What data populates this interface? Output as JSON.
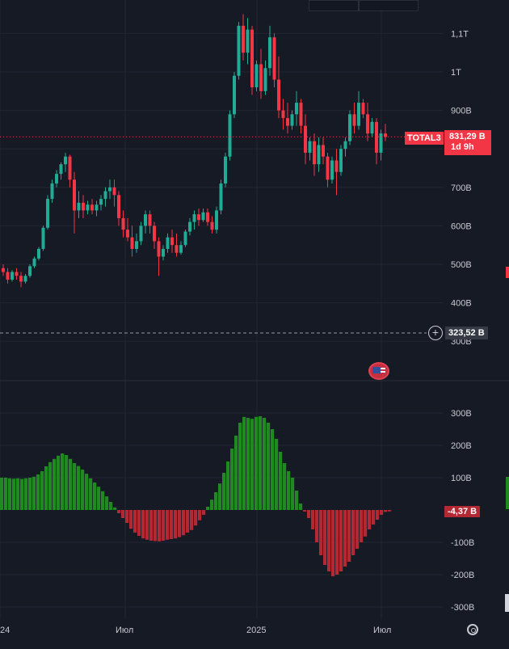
{
  "chart_data": {
    "type": "candlestick",
    "symbol": "TOTAL3",
    "price_scale": {
      "ticks": [
        "1,1T",
        "1T",
        "900B",
        "800B",
        "700B",
        "600B",
        "500B",
        "400B",
        "300B"
      ],
      "tick_values": [
        1100,
        1000,
        900,
        800,
        700,
        600,
        500,
        400,
        300
      ],
      "range": [
        230,
        1180
      ]
    },
    "last_price": {
      "symbol": "TOTAL3",
      "value": "831,29 B",
      "countdown": "1d 9h",
      "color": "#f23645"
    },
    "crosshair_price": {
      "value": "323,52 B"
    },
    "time_axis": {
      "labels": [
        "24",
        "Июл",
        "2025",
        "Июл"
      ]
    },
    "candles": [
      [
        490,
        500,
        470,
        480
      ],
      [
        480,
        490,
        450,
        460
      ],
      [
        460,
        485,
        455,
        480
      ],
      [
        480,
        490,
        460,
        470
      ],
      [
        470,
        480,
        440,
        455
      ],
      [
        455,
        475,
        450,
        470
      ],
      [
        470,
        500,
        465,
        495
      ],
      [
        495,
        520,
        490,
        515
      ],
      [
        515,
        545,
        510,
        540
      ],
      [
        540,
        600,
        535,
        595
      ],
      [
        595,
        680,
        590,
        670
      ],
      [
        670,
        720,
        660,
        710
      ],
      [
        710,
        745,
        700,
        735
      ],
      [
        735,
        765,
        720,
        760
      ],
      [
        760,
        790,
        740,
        780
      ],
      [
        780,
        785,
        700,
        720
      ],
      [
        720,
        740,
        580,
        640
      ],
      [
        640,
        690,
        620,
        660
      ],
      [
        660,
        680,
        620,
        640
      ],
      [
        640,
        665,
        630,
        655
      ],
      [
        655,
        670,
        630,
        640
      ],
      [
        640,
        665,
        625,
        655
      ],
      [
        655,
        680,
        640,
        670
      ],
      [
        670,
        700,
        650,
        690
      ],
      [
        690,
        720,
        670,
        700
      ],
      [
        700,
        720,
        650,
        680
      ],
      [
        680,
        690,
        600,
        620
      ],
      [
        620,
        640,
        570,
        590
      ],
      [
        590,
        620,
        560,
        570
      ],
      [
        570,
        600,
        520,
        540
      ],
      [
        540,
        580,
        530,
        560
      ],
      [
        560,
        610,
        550,
        600
      ],
      [
        600,
        640,
        580,
        630
      ],
      [
        630,
        640,
        580,
        600
      ],
      [
        600,
        610,
        540,
        560
      ],
      [
        560,
        570,
        470,
        520
      ],
      [
        520,
        550,
        510,
        540
      ],
      [
        540,
        580,
        530,
        570
      ],
      [
        570,
        590,
        530,
        550
      ],
      [
        550,
        580,
        520,
        530
      ],
      [
        530,
        560,
        525,
        550
      ],
      [
        550,
        590,
        545,
        585
      ],
      [
        585,
        620,
        575,
        610
      ],
      [
        610,
        640,
        590,
        630
      ],
      [
        630,
        645,
        600,
        615
      ],
      [
        615,
        645,
        610,
        635
      ],
      [
        635,
        645,
        600,
        610
      ],
      [
        610,
        625,
        580,
        590
      ],
      [
        590,
        650,
        580,
        640
      ],
      [
        640,
        720,
        630,
        710
      ],
      [
        710,
        790,
        700,
        780
      ],
      [
        780,
        900,
        770,
        890
      ],
      [
        890,
        1000,
        880,
        990
      ],
      [
        990,
        1130,
        980,
        1120
      ],
      [
        1120,
        1150,
        1030,
        1050
      ],
      [
        1050,
        1140,
        1020,
        1110
      ],
      [
        1110,
        1120,
        940,
        960
      ],
      [
        960,
        1030,
        950,
        1020
      ],
      [
        1020,
        1060,
        930,
        950
      ],
      [
        950,
        1030,
        940,
        1010
      ],
      [
        1010,
        1120,
        990,
        1090
      ],
      [
        1090,
        1100,
        960,
        980
      ],
      [
        980,
        1040,
        880,
        900
      ],
      [
        900,
        930,
        850,
        880
      ],
      [
        880,
        920,
        840,
        860
      ],
      [
        860,
        900,
        850,
        890
      ],
      [
        890,
        950,
        860,
        920
      ],
      [
        920,
        930,
        840,
        860
      ],
      [
        860,
        890,
        760,
        790
      ],
      [
        790,
        830,
        770,
        820
      ],
      [
        820,
        840,
        730,
        760
      ],
      [
        760,
        830,
        740,
        810
      ],
      [
        810,
        830,
        760,
        780
      ],
      [
        780,
        790,
        700,
        720
      ],
      [
        720,
        780,
        710,
        770
      ],
      [
        770,
        800,
        680,
        740
      ],
      [
        740,
        810,
        730,
        800
      ],
      [
        800,
        830,
        780,
        820
      ],
      [
        820,
        900,
        810,
        890
      ],
      [
        890,
        920,
        840,
        860
      ],
      [
        860,
        950,
        850,
        920
      ],
      [
        920,
        930,
        880,
        890
      ],
      [
        890,
        920,
        820,
        840
      ],
      [
        840,
        880,
        830,
        870
      ],
      [
        870,
        880,
        760,
        790
      ],
      [
        790,
        850,
        770,
        840
      ],
      [
        840,
        865,
        820,
        831
      ]
    ],
    "histogram": {
      "ticks": [
        "300B",
        "200B",
        "100B",
        "-100B",
        "-200B",
        "-300B"
      ],
      "tick_values": [
        300,
        200,
        100,
        -100,
        -200,
        -300
      ],
      "range": [
        -330,
        330
      ],
      "current": "-4,37 B",
      "values": [
        100,
        100,
        98,
        97,
        98,
        96,
        98,
        100,
        103,
        110,
        120,
        135,
        148,
        158,
        168,
        175,
        170,
        158,
        145,
        136,
        125,
        112,
        98,
        85,
        72,
        58,
        42,
        25,
        8,
        -10,
        -25,
        -40,
        -58,
        -70,
        -80,
        -88,
        -92,
        -95,
        -96,
        -97,
        -95,
        -92,
        -90,
        -88,
        -84,
        -78,
        -70,
        -62,
        -48,
        -32,
        -15,
        10,
        32,
        55,
        82,
        115,
        150,
        190,
        230,
        270,
        288,
        285,
        282,
        288,
        290,
        285,
        270,
        250,
        220,
        180,
        145,
        120,
        100,
        60,
        20,
        -5,
        -25,
        -60,
        -100,
        -140,
        -170,
        -190,
        -205,
        -200,
        -190,
        -175,
        -160,
        -140,
        -120,
        -100,
        -82,
        -60,
        -45,
        -30,
        -15,
        -6,
        -4.37
      ],
      "positive_color": "#089981",
      "positive_shade": "#1f8a1f",
      "negative_color": "#b22833"
    },
    "colors": {
      "up": "#22ab94",
      "down": "#f23645",
      "grid": "#232632",
      "bg": "#161a25",
      "separator": "#2a2e39"
    }
  }
}
